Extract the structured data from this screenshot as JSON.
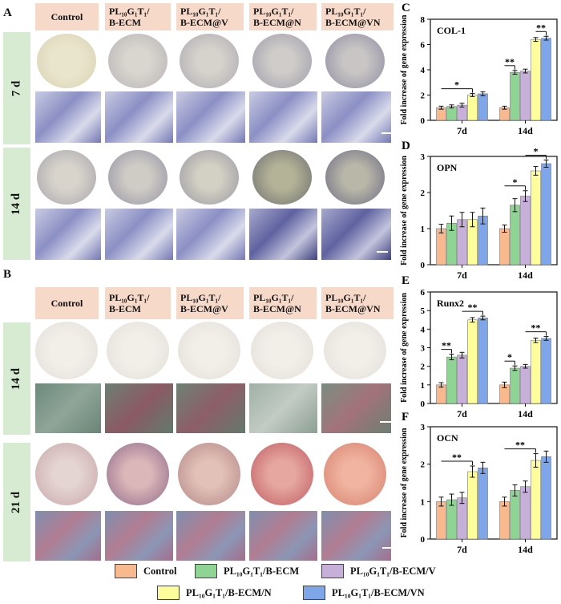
{
  "panels": {
    "A": {
      "letter": "A",
      "rows": [
        "7 d",
        "14 d"
      ]
    },
    "B": {
      "letter": "B",
      "rows": [
        "14 d",
        "21 d"
      ]
    }
  },
  "columns": [
    {
      "line1": "Control",
      "line2": ""
    },
    {
      "line1": "PL₁₀G₁T₁/",
      "line2": "B-ECM"
    },
    {
      "line1": "PL₁₀G₁T₁/",
      "line2": "B-ECM@V"
    },
    {
      "line1": "PL₁₀G₁T₁/",
      "line2": "B-ECM@N"
    },
    {
      "line1": "PL₁₀G₁T₁/",
      "line2": "B-ECM@VN"
    }
  ],
  "colors": {
    "control": "#f7b98d",
    "ecm": "#8fd495",
    "ecm_v": "#c6b0d9",
    "ecm_n": "#fdfd9c",
    "ecm_vn": "#7fa6e8",
    "header_bg": "#f6d9c9",
    "row_bg": "#d7ead2"
  },
  "legend": [
    {
      "label": "Control",
      "color_key": "control"
    },
    {
      "label": "PL₁₀G₁T₁/B-ECM",
      "color_key": "ecm"
    },
    {
      "label": "PL₁₀G₁T₁/B-ECM/V",
      "color_key": "ecm_v"
    },
    {
      "label": "PL₁₀G₁T₁/B-ECM/N",
      "color_key": "ecm_n"
    },
    {
      "label": "PL₁₀G₁T₁/B-ECM/VN",
      "color_key": "ecm_vn"
    }
  ],
  "chart_data": [
    {
      "panel": "C",
      "type": "bar",
      "title": "COL-1",
      "ylabel": "Fold increase of gene expression",
      "categories": [
        "7d",
        "14d"
      ],
      "ylim": [
        0,
        8
      ],
      "yticks": [
        0,
        2,
        4,
        6,
        8
      ],
      "series": [
        {
          "color_key": "control",
          "values": [
            1.0,
            1.0
          ],
          "errors": [
            0.12,
            0.12
          ]
        },
        {
          "color_key": "ecm",
          "values": [
            1.1,
            3.8
          ],
          "errors": [
            0.12,
            0.15
          ]
        },
        {
          "color_key": "ecm_v",
          "values": [
            1.2,
            3.9
          ],
          "errors": [
            0.15,
            0.15
          ]
        },
        {
          "color_key": "ecm_n",
          "values": [
            2.0,
            6.4
          ],
          "errors": [
            0.12,
            0.15
          ]
        },
        {
          "color_key": "ecm_vn",
          "values": [
            2.1,
            6.5
          ],
          "errors": [
            0.15,
            0.15
          ]
        }
      ],
      "significance": [
        {
          "group": 0,
          "label": "*",
          "from": 0,
          "to": 3
        },
        {
          "group": 1,
          "label": "**",
          "from": 0,
          "to": 1
        },
        {
          "group": 1,
          "label": "**",
          "from": 3,
          "to": 4
        }
      ]
    },
    {
      "panel": "D",
      "type": "bar",
      "title": "OPN",
      "ylabel": "Fold increase of gene expression",
      "categories": [
        "7d",
        "14d"
      ],
      "ylim": [
        0,
        3
      ],
      "yticks": [
        0,
        1,
        2,
        3
      ],
      "series": [
        {
          "color_key": "control",
          "values": [
            1.0,
            1.0
          ],
          "errors": [
            0.12,
            0.1
          ]
        },
        {
          "color_key": "ecm",
          "values": [
            1.15,
            1.65
          ],
          "errors": [
            0.2,
            0.18
          ]
        },
        {
          "color_key": "ecm_v",
          "values": [
            1.25,
            1.9
          ],
          "errors": [
            0.2,
            0.15
          ]
        },
        {
          "color_key": "ecm_n",
          "values": [
            1.25,
            2.6
          ],
          "errors": [
            0.2,
            0.12
          ]
        },
        {
          "color_key": "ecm_vn",
          "values": [
            1.35,
            2.8
          ],
          "errors": [
            0.22,
            0.1
          ]
        }
      ],
      "significance": [
        {
          "group": 1,
          "label": "*",
          "from": 0,
          "to": 2
        },
        {
          "group": 1,
          "label": "*",
          "from": 2,
          "to": 4
        }
      ]
    },
    {
      "panel": "E",
      "type": "bar",
      "title": "Runx2",
      "ylabel": "Fold increase of gene expression",
      "categories": [
        "7d",
        "14d"
      ],
      "ylim": [
        0,
        6
      ],
      "yticks": [
        0,
        1,
        2,
        3,
        4,
        5,
        6
      ],
      "series": [
        {
          "color_key": "control",
          "values": [
            1.0,
            1.0
          ],
          "errors": [
            0.12,
            0.15
          ]
        },
        {
          "color_key": "ecm",
          "values": [
            2.5,
            1.9
          ],
          "errors": [
            0.15,
            0.12
          ]
        },
        {
          "color_key": "ecm_v",
          "values": [
            2.6,
            2.0
          ],
          "errors": [
            0.15,
            0.1
          ]
        },
        {
          "color_key": "ecm_n",
          "values": [
            4.5,
            3.4
          ],
          "errors": [
            0.12,
            0.12
          ]
        },
        {
          "color_key": "ecm_vn",
          "values": [
            4.6,
            3.5
          ],
          "errors": [
            0.1,
            0.1
          ]
        }
      ],
      "significance": [
        {
          "group": 0,
          "label": "**",
          "from": 0,
          "to": 1
        },
        {
          "group": 0,
          "label": "**",
          "from": 2,
          "to": 4
        },
        {
          "group": 1,
          "label": "*",
          "from": 0,
          "to": 1
        },
        {
          "group": 1,
          "label": "**",
          "from": 2,
          "to": 4
        }
      ]
    },
    {
      "panel": "F",
      "type": "bar",
      "title": "OCN",
      "ylabel": "Fold increase of gene expression",
      "categories": [
        "7d",
        "14d"
      ],
      "ylim": [
        0,
        3
      ],
      "yticks": [
        0,
        1,
        2,
        3
      ],
      "series": [
        {
          "color_key": "control",
          "values": [
            1.0,
            1.0
          ],
          "errors": [
            0.12,
            0.12
          ]
        },
        {
          "color_key": "ecm",
          "values": [
            1.05,
            1.3
          ],
          "errors": [
            0.15,
            0.15
          ]
        },
        {
          "color_key": "ecm_v",
          "values": [
            1.1,
            1.4
          ],
          "errors": [
            0.15,
            0.15
          ]
        },
        {
          "color_key": "ecm_n",
          "values": [
            1.8,
            2.1
          ],
          "errors": [
            0.15,
            0.18
          ]
        },
        {
          "color_key": "ecm_vn",
          "values": [
            1.9,
            2.2
          ],
          "errors": [
            0.15,
            0.15
          ]
        }
      ],
      "significance": [
        {
          "group": 0,
          "label": "**",
          "from": 0,
          "to": 3
        },
        {
          "group": 1,
          "label": "**",
          "from": 0,
          "to": 3
        }
      ]
    }
  ]
}
